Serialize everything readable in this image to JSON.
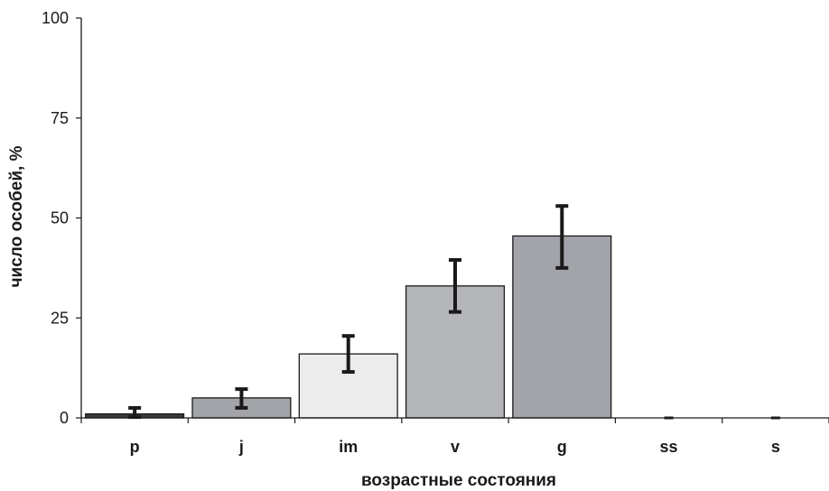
{
  "chart_data": {
    "type": "bar",
    "title": "",
    "xlabel": "возрастные состояния",
    "ylabel": "число особей, %",
    "categories": [
      "p",
      "j",
      "im",
      "v",
      "g",
      "ss",
      "s"
    ],
    "values": [
      1,
      5,
      16,
      33,
      45.5,
      0,
      0
    ],
    "error_low": [
      0.2,
      2.5,
      11.5,
      26.5,
      37.5,
      0,
      0
    ],
    "error_high": [
      2.5,
      7.2,
      20.5,
      39.5,
      53,
      0,
      0
    ],
    "bar_colors": [
      "#3a3a3a",
      "#a2a4a9",
      "#ececec",
      "#b5b6ba",
      "#a2a4a9",
      "#ffffff",
      "#ffffff"
    ],
    "error_bar_color": "#1a1a1a",
    "ylim": [
      0,
      100
    ],
    "yticks": [
      "0",
      "25",
      "50",
      "75",
      "100"
    ],
    "grid": false,
    "legend": "none"
  }
}
